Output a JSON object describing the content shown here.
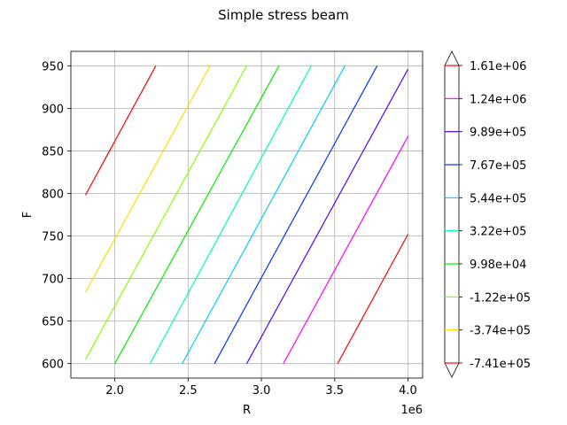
{
  "chart_data": {
    "type": "line",
    "subtype": "contour",
    "title": "Simple stress beam",
    "xlabel": "R",
    "ylabel": "F",
    "x_offset_label": "1e6",
    "xlim": [
      1.7,
      4.1
    ],
    "ylim": [
      583,
      967
    ],
    "xticks": [
      2.0,
      2.5,
      3.0,
      3.5,
      4.0
    ],
    "xtick_labels": [
      "2.0",
      "2.5",
      "3.0",
      "3.5",
      "4.0"
    ],
    "yticks": [
      600,
      650,
      700,
      750,
      800,
      850,
      900,
      950
    ],
    "ytick_labels": [
      "600",
      "650",
      "700",
      "750",
      "800",
      "850",
      "900",
      "950"
    ],
    "grid": true,
    "colorbar": {
      "position": "right",
      "extend": "both",
      "labels": [
        "-7.41e+05",
        "-3.74e+05",
        "-1.22e+05",
        "9.98e+04",
        "3.22e+05",
        "5.44e+05",
        "7.67e+05",
        "9.89e+05",
        "1.24e+06",
        "1.61e+06"
      ],
      "colors": [
        "#ff0000",
        "#ffdd00",
        "#88ff00",
        "#00ee00",
        "#00ffaa",
        "#00ccff",
        "#0033ff",
        "#5500ff",
        "#ff00ff",
        "#ff0000"
      ]
    },
    "series": [
      {
        "level": "1.61e+06",
        "color": "#ff0000",
        "x": [
          1.8,
          2.28
        ],
        "y": [
          798,
          950
        ]
      },
      {
        "level": "-3.74e+05",
        "color": "#ffdd00",
        "x": [
          1.8,
          2.65
        ],
        "y": [
          684,
          950
        ]
      },
      {
        "level": "-1.22e+05",
        "color": "#88ff00",
        "x": [
          1.8,
          2.9
        ],
        "y": [
          605,
          950
        ]
      },
      {
        "level": "9.98e+04",
        "color": "#00ee00",
        "x": [
          2.0,
          3.12
        ],
        "y": [
          600,
          950
        ]
      },
      {
        "level": "3.22e+05",
        "color": "#00ffaa",
        "x": [
          2.24,
          3.34
        ],
        "y": [
          600,
          950
        ]
      },
      {
        "level": "5.44e+05",
        "color": "#00ccff",
        "x": [
          2.46,
          3.57
        ],
        "y": [
          600,
          950
        ]
      },
      {
        "level": "7.67e+05",
        "color": "#0033ff",
        "x": [
          2.68,
          3.79
        ],
        "y": [
          600,
          950
        ]
      },
      {
        "level": "9.89e+05",
        "color": "#5500ff",
        "x": [
          2.9,
          4.0
        ],
        "y": [
          600,
          946
        ]
      },
      {
        "level": "1.24e+06",
        "color": "#ff00ff",
        "x": [
          3.15,
          4.0
        ],
        "y": [
          600,
          867
        ]
      },
      {
        "level": "-7.41e+05",
        "color": "#ff0000",
        "x": [
          3.52,
          4.0
        ],
        "y": [
          600,
          752
        ]
      }
    ]
  }
}
